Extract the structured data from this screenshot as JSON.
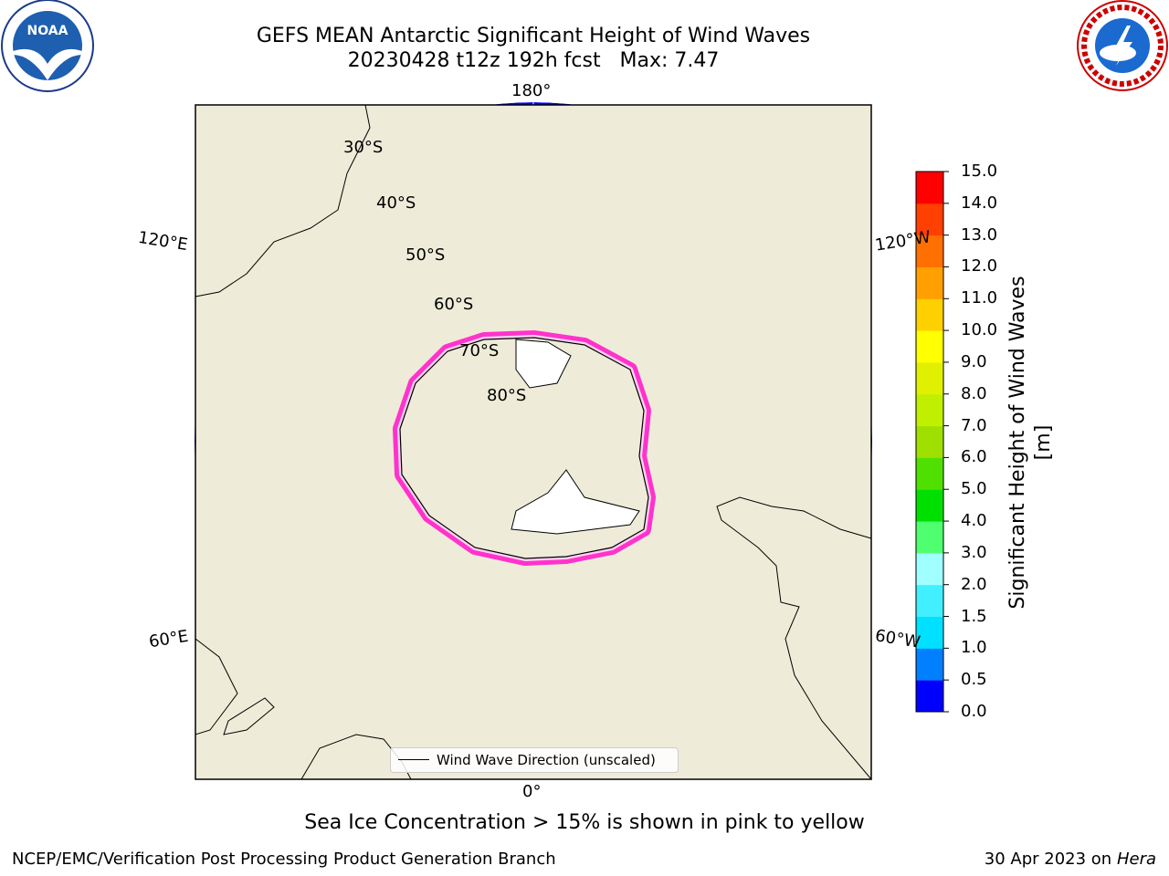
{
  "header": {
    "title_line1": "GEFS MEAN Antarctic Significant Height of Wind Waves",
    "title_line2": "20230428 t12z 192h fcst   Max: 7.47"
  },
  "map": {
    "projection": "south-polar-stereographic",
    "longitude_labels": {
      "top": "180°",
      "bottom": "0°",
      "upper_left": "120°E",
      "lower_left": "60°E",
      "upper_right": "120°W",
      "lower_right": "60°W"
    },
    "latitude_labels": [
      "30°S",
      "40°S",
      "50°S",
      "60°S",
      "70°S",
      "80°S"
    ],
    "colors": {
      "land": "#eeecd9",
      "ice_land": "#ffffff",
      "sea_ice_edge": "#ff33cc",
      "arrows": "#ff0000",
      "grid": "#b0b0b0",
      "ocean_low": "#0000ff"
    },
    "legend_label": "Wind Wave Direction (unscaled)"
  },
  "colorbar": {
    "label": "Significant Height of Wind Waves [m]",
    "ticks": [
      "0.0",
      "0.5",
      "1.0",
      "1.5",
      "2.0",
      "3.0",
      "4.0",
      "5.0",
      "6.0",
      "7.0",
      "8.0",
      "9.0",
      "10.0",
      "11.0",
      "12.0",
      "13.0",
      "14.0",
      "15.0"
    ],
    "colors": [
      "#0000ff",
      "#0080ff",
      "#00e0ff",
      "#40f0ff",
      "#a0ffff",
      "#50ff70",
      "#00e000",
      "#50e000",
      "#a0e000",
      "#c0f000",
      "#e0f000",
      "#ffff00",
      "#ffd000",
      "#ffa000",
      "#ff7000",
      "#ff4000",
      "#ff0000"
    ]
  },
  "note": "Sea Ice Concentration > 15% is shown in pink to yellow",
  "footer": {
    "left": "NCEP/EMC/Verification Post Processing Product Generation Branch",
    "right_prefix": "30 Apr 2023 on ",
    "right_host": "Hera"
  },
  "logos": {
    "left_text": "NOAA",
    "right_text": "NATIONAL WEATHER SERVICE"
  }
}
